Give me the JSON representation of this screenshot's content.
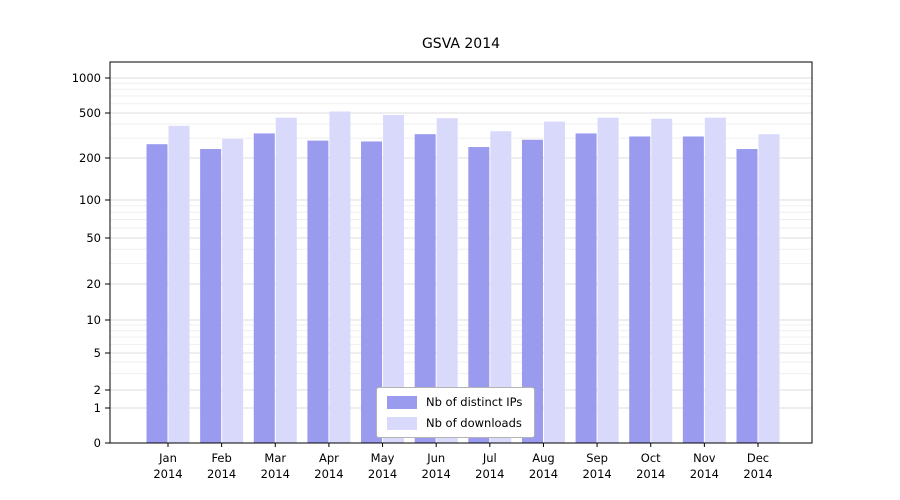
{
  "title": "GSVA 2014",
  "colors": {
    "distinct_ips": "#9a9aee",
    "downloads": "#d9dafb",
    "grid_major": "#dedede",
    "grid_minor": "#efefef",
    "axis": "#000000",
    "background": "#ffffff"
  },
  "legend": {
    "items": [
      {
        "label": "Nb of distinct IPs",
        "color": "#9a9aee"
      },
      {
        "label": "Nb of downloads",
        "color": "#d9dafb"
      }
    ]
  },
  "chart_data": {
    "type": "bar",
    "title": "GSVA 2014",
    "categories": [
      "Jan",
      "Feb",
      "Mar",
      "Apr",
      "May",
      "Jun",
      "Jul",
      "Aug",
      "Sep",
      "Oct",
      "Nov",
      "Dec"
    ],
    "year_label": "2014",
    "series": [
      {
        "name": "Nb of distinct IPs",
        "color": "#9a9aee",
        "values": [
          265,
          240,
          330,
          285,
          280,
          325,
          250,
          290,
          330,
          310,
          310,
          240
        ]
      },
      {
        "name": "Nb of downloads",
        "color": "#d9dafb",
        "values": [
          385,
          295,
          455,
          515,
          480,
          450,
          345,
          420,
          455,
          445,
          455,
          325
        ]
      }
    ],
    "yscale": "log",
    "y_ticks": [
      0,
      1,
      2,
      5,
      10,
      20,
      50,
      100,
      200,
      500,
      1000
    ],
    "ylim": [
      0,
      1000
    ],
    "grid": true,
    "legend_position": "lower center"
  }
}
